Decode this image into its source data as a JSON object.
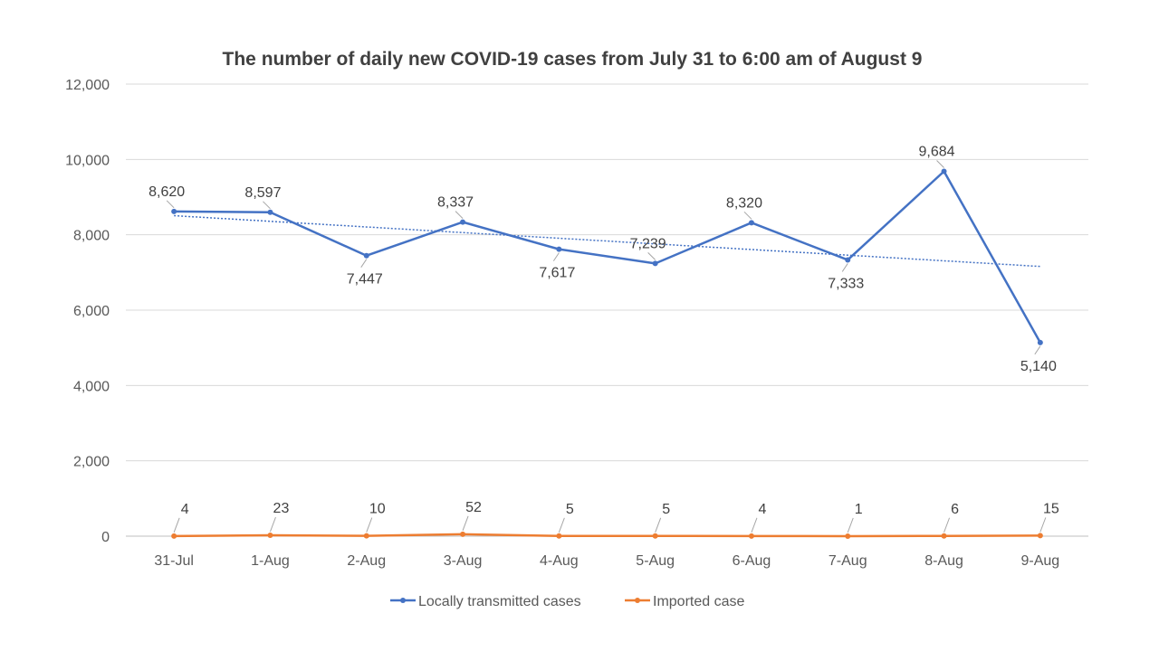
{
  "chart_data": {
    "type": "line",
    "title": "The number of daily new COVID-19 cases from July 31 to 6:00 am of August 9",
    "xlabel": "",
    "ylabel": "",
    "categories": [
      "31-Jul",
      "1-Aug",
      "2-Aug",
      "3-Aug",
      "4-Aug",
      "5-Aug",
      "6-Aug",
      "7-Aug",
      "8-Aug",
      "9-Aug"
    ],
    "ylim": [
      0,
      12000
    ],
    "yticks": [
      "0",
      "2,000",
      "4,000",
      "6,000",
      "8,000",
      "10,000",
      "12,000"
    ],
    "grid": true,
    "legend_position": "bottom",
    "series": [
      {
        "name": "Locally transmitted cases",
        "color": "#4472C4",
        "values": [
          8620,
          8597,
          7447,
          8337,
          7617,
          7239,
          8320,
          7333,
          9684,
          5140
        ],
        "labels": [
          "8,620",
          "8,597",
          "7,447",
          "8,337",
          "7,617",
          "7,239",
          "8,320",
          "7,333",
          "9,684",
          "5,140"
        ],
        "trendline": "linear"
      },
      {
        "name": "Imported case",
        "color": "#ED7D31",
        "values": [
          4,
          23,
          10,
          52,
          5,
          5,
          4,
          1,
          6,
          15
        ],
        "labels": [
          "4",
          "23",
          "10",
          "52",
          "5",
          "5",
          "4",
          "1",
          "6",
          "15"
        ]
      }
    ]
  }
}
